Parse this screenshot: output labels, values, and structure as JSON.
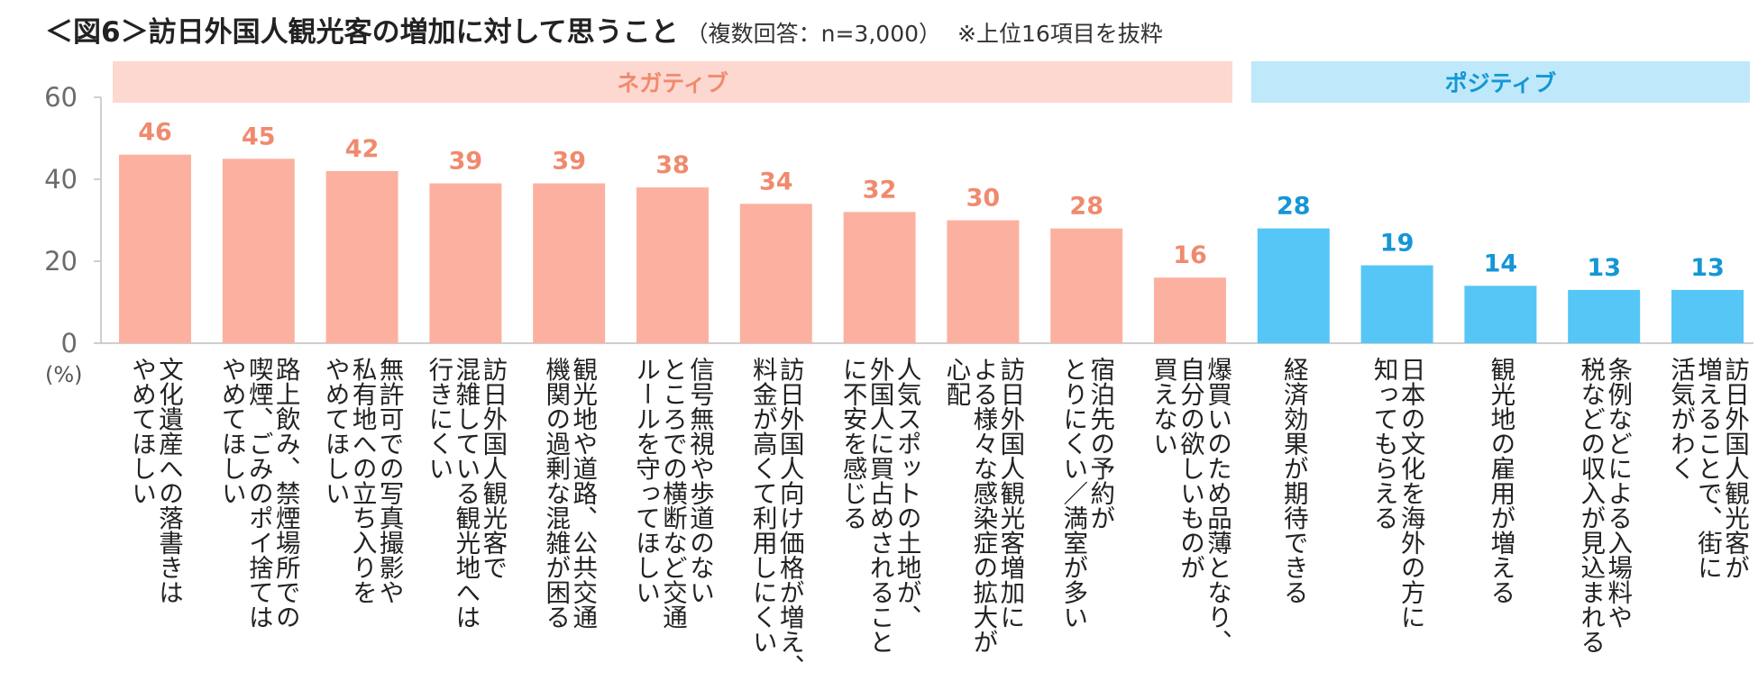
{
  "title": {
    "main": "＜図6＞訪日外国人観光客の増加に対して思うこと",
    "sample": "（複数回答：n=3,000）",
    "note": "※上位16項目を抜粋"
  },
  "chart_data": {
    "type": "bar",
    "unit_label": "(%)",
    "ylim": [
      0,
      60
    ],
    "yticks": [
      0,
      20,
      40,
      60
    ],
    "grid": false,
    "groups": [
      {
        "label": "ネガティブ",
        "start": 0,
        "end": 10,
        "band_color": "#fcd8d0",
        "bar_color": "#fcb1a0",
        "label_color": "#f08a6e"
      },
      {
        "label": "ポジティブ",
        "start": 11,
        "end": 15,
        "band_color": "#bfe9fa",
        "bar_color": "#55c6f5",
        "label_color": "#1596d6"
      }
    ],
    "categories": [
      [
        "文化遺産への落書きは",
        "やめてほしい"
      ],
      [
        "路上飲み、禁煙場所での",
        "喫煙、ごみのポイ捨ては",
        "やめてほしい"
      ],
      [
        "無許可での写真撮影や",
        "私有地への立ち入りを",
        "やめてほしい"
      ],
      [
        "訪日外国人観光客で",
        "混雑している観光地へは",
        "行きにくい"
      ],
      [
        "観光地や道路、公共交通",
        "機関の過剰な混雑が困る"
      ],
      [
        "信号無視や歩道のない",
        "ところでの横断など交通",
        "ルールを守ってほしい"
      ],
      [
        "訪日外国人向け価格が増え、",
        "料金が高くて利用しにくい"
      ],
      [
        "人気スポットの土地が、",
        "外国人に買占めされること",
        "に不安を感じる"
      ],
      [
        "訪日外国人観光客増加に",
        "よる様々な感染症の拡大が",
        "心配"
      ],
      [
        "宿泊先の予約が",
        "とりにくい／満室が多い"
      ],
      [
        "爆買いのため品薄となり、",
        "自分の欲しいものが",
        "買えない"
      ],
      [
        "経済効果が期待できる"
      ],
      [
        "日本の文化を海外の方に",
        "知ってもらえる"
      ],
      [
        "観光地の雇用が増える"
      ],
      [
        "条例などによる入場料や",
        "税などの収入が見込まれる"
      ],
      [
        "訪日外国人観光客が",
        "増えることで、街に",
        "活気がわく"
      ]
    ],
    "values": [
      46,
      45,
      42,
      39,
      39,
      38,
      34,
      32,
      30,
      28,
      16,
      28,
      19,
      14,
      13,
      13
    ]
  }
}
